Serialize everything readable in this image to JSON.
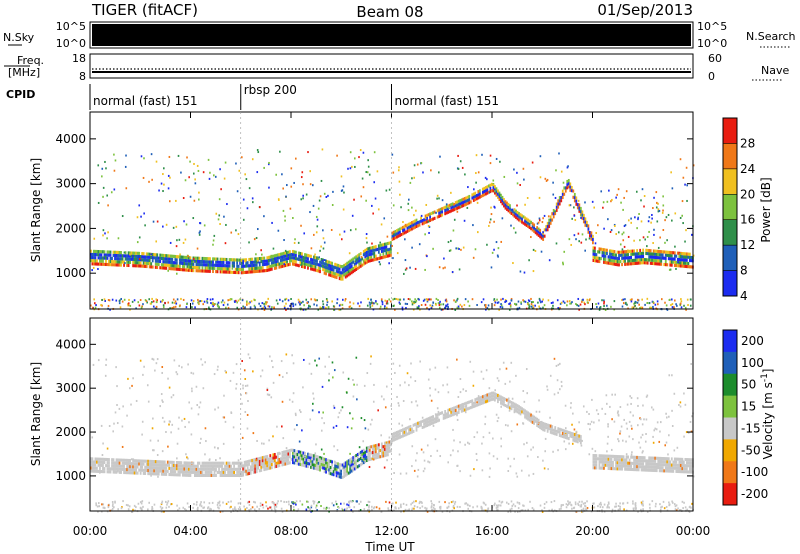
{
  "header": {
    "left": "TIGER (fitACF)",
    "center": "Beam 08",
    "right": "01/Sep/2013"
  },
  "side_labels": {
    "nsky": "N.Sky",
    "nsearch": "N.Search",
    "freq_line1": "Freq.",
    "freq_line2": "[MHz]",
    "nave": "Nave",
    "cpid": "CPID"
  },
  "nsky_ticks": {
    "top": "10^5",
    "bottom": "10^0"
  },
  "nsearch_ticks": {
    "top": "10^5",
    "bottom": "10^0"
  },
  "freq_ticks": {
    "top": "18",
    "bottom": "8"
  },
  "nave_ticks": {
    "top": "60",
    "bottom": "0"
  },
  "cpid_segments": [
    {
      "label": "normal (fast) 151",
      "start_hour": 0,
      "end_hour": 6
    },
    {
      "label": "rbsp 200",
      "start_hour": 6,
      "end_hour": 12
    },
    {
      "label": "normal (fast) 151",
      "start_hour": 12,
      "end_hour": 24
    }
  ],
  "colors": {
    "power": [
      "#1c2cf0",
      "#1f5fb8",
      "#2f8f4a",
      "#7dc23e",
      "#f0c020",
      "#f07818",
      "#e81c10"
    ],
    "velocity": [
      "#e81c10",
      "#f07818",
      "#f0a800",
      "#c8c8c8",
      "#7dc23e",
      "#1c8c2c",
      "#1f5fb8",
      "#1c2cf0"
    ]
  },
  "chart_data": [
    {
      "type": "heatmap",
      "name": "power",
      "ylabel": "Slant Range [km]",
      "ylim": [
        200,
        4600
      ],
      "yticks": [
        1000,
        2000,
        3000,
        4000
      ],
      "xlim": [
        0,
        24
      ],
      "colorbar_label": "Power [dB]",
      "colorbar_ticks": [
        "4",
        "8",
        "12",
        "16",
        "20",
        "24",
        "28"
      ],
      "bands": [
        {
          "x": [
            0.0,
            2.0,
            4.0,
            6.0,
            7.0,
            8.0,
            9.0,
            10.0,
            11.0,
            12.0
          ],
          "y": [
            1350,
            1300,
            1200,
            1150,
            1200,
            1350,
            1200,
            1000,
            1400,
            1550
          ],
          "width": 350
        },
        {
          "x": [
            12.0,
            13.0,
            14.0,
            15.0,
            16.0,
            16.5,
            17.0,
            17.5,
            18.0,
            19.0,
            20.0
          ],
          "y": [
            1800,
            2100,
            2350,
            2600,
            2900,
            2500,
            2250,
            2050,
            1800,
            3000,
            1700
          ],
          "width": 160
        },
        {
          "x": [
            20.0,
            21.0,
            22.0,
            23.0,
            24.0
          ],
          "y": [
            1400,
            1300,
            1350,
            1300,
            1250
          ],
          "width": 300
        }
      ]
    },
    {
      "type": "heatmap",
      "name": "velocity",
      "ylabel": "Slant Range [km]",
      "ylim": [
        200,
        4600
      ],
      "yticks": [
        1000,
        2000,
        3000,
        4000
      ],
      "xlim": [
        0,
        24
      ],
      "xlabel": "Time UT",
      "xticks": [
        "00:00",
        "04:00",
        "08:00",
        "12:00",
        "16:00",
        "20:00",
        "00:00"
      ],
      "colorbar_label": "Velocity [m s^-1]",
      "colorbar_ticks": [
        "200",
        "100",
        "50",
        "15",
        "-15",
        "-50",
        "-100",
        "-200"
      ],
      "bands": [
        {
          "x": [
            0.0,
            2.0,
            4.0,
            6.0,
            7.0,
            8.0,
            9.0,
            10.0,
            11.0,
            12.0
          ],
          "y": [
            1250,
            1200,
            1150,
            1150,
            1300,
            1450,
            1300,
            1100,
            1500,
            1650
          ],
          "width": 350
        },
        {
          "x": [
            12.0,
            14.0,
            16.0,
            17.0,
            18.0,
            19.5
          ],
          "y": [
            1850,
            2350,
            2800,
            2500,
            2100,
            1800
          ],
          "width": 160
        },
        {
          "x": [
            20.0,
            22.0,
            24.0
          ],
          "y": [
            1300,
            1250,
            1200
          ],
          "width": 300
        }
      ]
    }
  ]
}
